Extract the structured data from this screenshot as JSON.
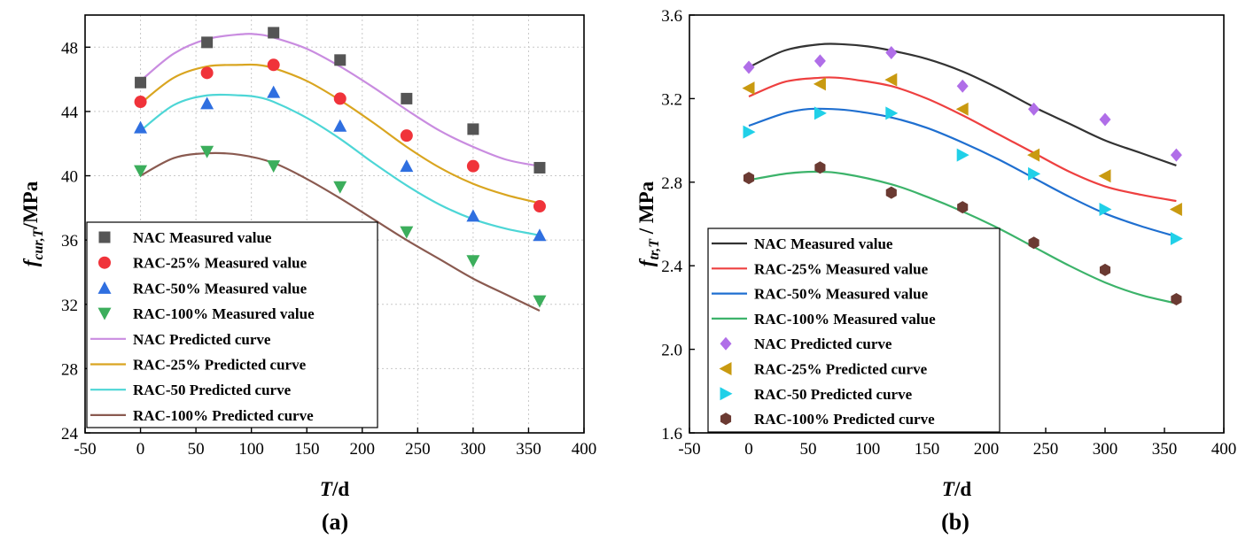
{
  "chart_data": [
    {
      "type": "line",
      "panel_label": "(a)",
      "xlabel_italic": "T",
      "xlabel_suffix": "/d",
      "ylabel_main": "f",
      "ylabel_sub": "cur,T",
      "ylabel_suffix": "/MPa",
      "xlim": [
        -50,
        400
      ],
      "ylim": [
        24,
        50
      ],
      "xticks": [
        -50,
        0,
        50,
        100,
        150,
        200,
        250,
        300,
        350,
        400
      ],
      "yticks": [
        24,
        28,
        32,
        36,
        40,
        44,
        48
      ],
      "grid": true,
      "legend_position": "lower-left",
      "legend_order": [
        0,
        1,
        2,
        3,
        4,
        5,
        6,
        7
      ],
      "x": [
        0,
        60,
        120,
        180,
        240,
        300,
        360
      ],
      "series": [
        {
          "name": "NAC Measured value",
          "kind": "marker",
          "marker": "square",
          "color": "#555555",
          "values": [
            45.8,
            48.3,
            48.9,
            47.2,
            44.8,
            42.9,
            40.5
          ]
        },
        {
          "name": "RAC-25% Measured value",
          "kind": "marker",
          "marker": "circle",
          "color": "#f0333a",
          "values": [
            44.6,
            46.4,
            46.9,
            44.8,
            42.5,
            40.6,
            38.1
          ]
        },
        {
          "name": "RAC-50% Measured value",
          "kind": "marker",
          "marker": "triangle-up",
          "color": "#2f6fe0",
          "values": [
            43.0,
            44.5,
            45.2,
            43.1,
            40.6,
            37.5,
            36.3
          ]
        },
        {
          "name": "RAC-100% Measured value",
          "kind": "marker",
          "marker": "triangle-down",
          "color": "#3cae5c",
          "values": [
            40.3,
            41.5,
            40.6,
            39.3,
            36.5,
            34.7,
            32.2
          ]
        },
        {
          "name": "NAC Predicted curve",
          "kind": "line",
          "color": "#c98ce0",
          "curve_x": [
            0,
            30,
            60,
            90,
            105,
            120,
            150,
            180,
            210,
            240,
            270,
            300,
            330,
            360
          ],
          "curve_y": [
            45.9,
            47.6,
            48.5,
            48.8,
            48.8,
            48.6,
            47.9,
            46.8,
            45.5,
            44.1,
            42.8,
            41.8,
            41.0,
            40.6
          ]
        },
        {
          "name": "RAC-25% Predicted curve",
          "kind": "line",
          "color": "#d9a520",
          "curve_x": [
            0,
            30,
            60,
            90,
            105,
            120,
            150,
            180,
            210,
            240,
            270,
            300,
            330,
            360
          ],
          "curve_y": [
            44.5,
            46.1,
            46.8,
            46.9,
            46.9,
            46.7,
            45.9,
            44.7,
            43.3,
            41.8,
            40.5,
            39.5,
            38.8,
            38.3
          ]
        },
        {
          "name": "RAC-50 Predicted curve",
          "kind": "line",
          "color": "#4dd6d6",
          "curve_x": [
            0,
            30,
            60,
            90,
            105,
            120,
            150,
            180,
            210,
            240,
            270,
            300,
            330,
            360
          ],
          "curve_y": [
            42.8,
            44.4,
            45.0,
            45.0,
            44.9,
            44.6,
            43.6,
            42.3,
            40.8,
            39.4,
            38.2,
            37.3,
            36.7,
            36.3
          ]
        },
        {
          "name": "RAC-100% Predicted curve",
          "kind": "line",
          "color": "#8a5a50",
          "curve_x": [
            0,
            30,
            60,
            90,
            120,
            150,
            180,
            210,
            240,
            270,
            300,
            330,
            360
          ],
          "curve_y": [
            40.0,
            41.1,
            41.4,
            41.3,
            40.8,
            39.8,
            38.6,
            37.3,
            36.0,
            34.8,
            33.6,
            32.6,
            31.6
          ]
        }
      ]
    },
    {
      "type": "line",
      "panel_label": "(b)",
      "xlabel_italic": "T",
      "xlabel_suffix": "/d",
      "ylabel_main": "f",
      "ylabel_sub": "tr,T",
      "ylabel_suffix": " / MPa",
      "xlim": [
        -50,
        400
      ],
      "ylim": [
        1.6,
        3.6
      ],
      "xticks": [
        -50,
        0,
        50,
        100,
        150,
        200,
        250,
        300,
        350,
        400
      ],
      "yticks": [
        1.6,
        2.0,
        2.4,
        2.8,
        3.2,
        3.6
      ],
      "grid": false,
      "legend_position": "lower-left",
      "legend_order": [
        4,
        5,
        6,
        7,
        0,
        1,
        2,
        3
      ],
      "x": [
        0,
        60,
        120,
        180,
        240,
        300,
        360
      ],
      "series": [
        {
          "name": "NAC Predicted curve",
          "kind": "marker",
          "marker": "diamond",
          "color": "#b06ee8",
          "values": [
            3.35,
            3.38,
            3.42,
            3.26,
            3.15,
            3.1,
            2.93
          ]
        },
        {
          "name": "RAC-25% Predicted curve",
          "kind": "marker",
          "marker": "triangle-left",
          "color": "#c99a10",
          "values": [
            3.25,
            3.27,
            3.29,
            3.15,
            2.93,
            2.83,
            2.67
          ]
        },
        {
          "name": "RAC-50 Predicted curve",
          "kind": "marker",
          "marker": "triangle-right",
          "color": "#20d0e8",
          "values": [
            3.04,
            3.13,
            3.13,
            2.93,
            2.84,
            2.67,
            2.53
          ]
        },
        {
          "name": "RAC-100% Predicted curve",
          "kind": "marker",
          "marker": "hexagon",
          "color": "#6b3a32",
          "values": [
            2.82,
            2.87,
            2.75,
            2.68,
            2.51,
            2.38,
            2.24
          ]
        },
        {
          "name": "NAC Measured value",
          "kind": "line",
          "color": "#333333",
          "curve_x": [
            0,
            30,
            60,
            80,
            100,
            120,
            150,
            180,
            210,
            240,
            270,
            300,
            330,
            360
          ],
          "curve_y": [
            3.35,
            3.43,
            3.46,
            3.46,
            3.45,
            3.43,
            3.39,
            3.33,
            3.25,
            3.16,
            3.08,
            3.0,
            2.94,
            2.88
          ]
        },
        {
          "name": "RAC-25% Measured value",
          "kind": "line",
          "color": "#ee4040",
          "curve_x": [
            0,
            30,
            60,
            75,
            90,
            120,
            150,
            180,
            210,
            240,
            270,
            300,
            330,
            360
          ],
          "curve_y": [
            3.21,
            3.28,
            3.3,
            3.3,
            3.29,
            3.26,
            3.2,
            3.12,
            3.03,
            2.94,
            2.85,
            2.78,
            2.74,
            2.71
          ]
        },
        {
          "name": "RAC-50% Measured value",
          "kind": "line",
          "color": "#1f6fd0",
          "curve_x": [
            0,
            30,
            50,
            70,
            90,
            120,
            150,
            180,
            210,
            240,
            270,
            300,
            330,
            360
          ],
          "curve_y": [
            3.07,
            3.13,
            3.15,
            3.15,
            3.14,
            3.11,
            3.06,
            2.99,
            2.91,
            2.82,
            2.73,
            2.65,
            2.59,
            2.54
          ]
        },
        {
          "name": "RAC-100% Measured value",
          "kind": "line",
          "color": "#3cb36a",
          "curve_x": [
            0,
            30,
            55,
            80,
            120,
            150,
            180,
            210,
            240,
            270,
            300,
            330,
            360
          ],
          "curve_y": [
            2.81,
            2.84,
            2.85,
            2.84,
            2.79,
            2.73,
            2.66,
            2.58,
            2.49,
            2.4,
            2.32,
            2.26,
            2.22
          ]
        }
      ]
    }
  ]
}
